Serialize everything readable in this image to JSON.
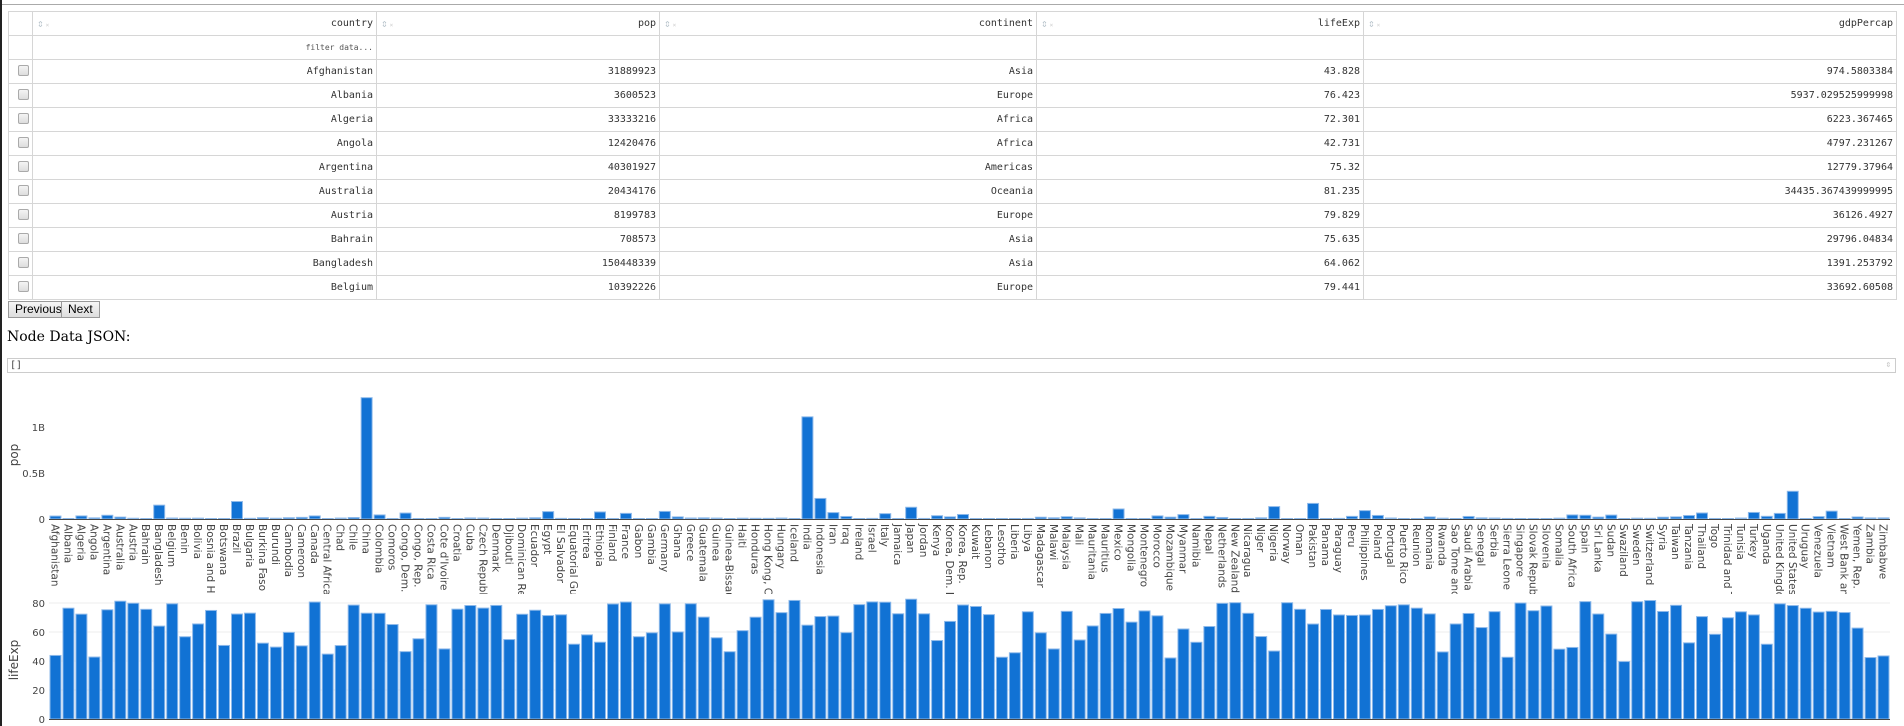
{
  "table": {
    "columns": [
      "country",
      "pop",
      "continent",
      "lifeExp",
      "gdpPercap"
    ],
    "filter_placeholder": "filter data...",
    "rows": [
      [
        "Afghanistan",
        "31889923",
        "Asia",
        "43.828",
        "974.5803384"
      ],
      [
        "Albania",
        "3600523",
        "Europe",
        "76.423",
        "5937.029525999998"
      ],
      [
        "Algeria",
        "33333216",
        "Africa",
        "72.301",
        "6223.367465"
      ],
      [
        "Angola",
        "12420476",
        "Africa",
        "42.731",
        "4797.231267"
      ],
      [
        "Argentina",
        "40301927",
        "Americas",
        "75.32",
        "12779.37964"
      ],
      [
        "Australia",
        "20434176",
        "Oceania",
        "81.235",
        "34435.367439999995"
      ],
      [
        "Austria",
        "8199783",
        "Europe",
        "79.829",
        "36126.4927"
      ],
      [
        "Bahrain",
        "708573",
        "Asia",
        "75.635",
        "29796.04834"
      ],
      [
        "Bangladesh",
        "150448339",
        "Asia",
        "64.062",
        "1391.253792"
      ],
      [
        "Belgium",
        "10392226",
        "Europe",
        "79.441",
        "33692.60508"
      ]
    ]
  },
  "pager": {
    "previous_label": "Previous",
    "next_label": "Next"
  },
  "node_data": {
    "label": "Node Data JSON:",
    "value": "[]"
  },
  "colors": {
    "bar": "#1172d4",
    "bar_outline": "#8db9ea"
  },
  "chart_data": [
    {
      "type": "bar",
      "ylabel": "pop",
      "ylim": [
        0,
        1400000000
      ],
      "yticks": [
        0,
        500000000,
        1000000000
      ],
      "ytick_labels": [
        "0",
        "0.5B",
        "1B"
      ],
      "grid": false,
      "series_key": "pop"
    },
    {
      "type": "bar",
      "ylabel": "lifeExp",
      "ylim": [
        0,
        84
      ],
      "yticks": [
        0,
        20,
        40,
        60,
        80
      ],
      "ytick_labels": [
        "0",
        "20",
        "40",
        "60",
        "80"
      ],
      "grid": true,
      "series_key": "lifeExp"
    }
  ],
  "countries": [
    [
      "Afghanistan",
      31889923,
      43.828
    ],
    [
      "Albania",
      3600523,
      76.423
    ],
    [
      "Algeria",
      33333216,
      72.301
    ],
    [
      "Angola",
      12420476,
      42.731
    ],
    [
      "Argentina",
      40301927,
      75.32
    ],
    [
      "Australia",
      20434176,
      81.235
    ],
    [
      "Austria",
      8199783,
      79.829
    ],
    [
      "Bahrain",
      708573,
      75.635
    ],
    [
      "Bangladesh",
      150448339,
      64.062
    ],
    [
      "Belgium",
      10392226,
      79.441
    ],
    [
      "Benin",
      8078314,
      56.728
    ],
    [
      "Bolivia",
      9119152,
      65.554
    ],
    [
      "Bosnia and Herzegovina",
      4552198,
      74.852
    ],
    [
      "Botswana",
      1639131,
      50.728
    ],
    [
      "Brazil",
      190010647,
      72.39
    ],
    [
      "Bulgaria",
      7322858,
      73.005
    ],
    [
      "Burkina Faso",
      14326203,
      52.295
    ],
    [
      "Burundi",
      8390505,
      49.58
    ],
    [
      "Cambodia",
      14131858,
      59.723
    ],
    [
      "Cameroon",
      17696293,
      50.43
    ],
    [
      "Canada",
      33390141,
      80.653
    ],
    [
      "Central African Republic",
      4369038,
      44.741
    ],
    [
      "Chad",
      10238807,
      50.651
    ],
    [
      "Chile",
      16284741,
      78.553
    ],
    [
      "China",
      1318683096,
      72.961
    ],
    [
      "Colombia",
      44227550,
      72.889
    ],
    [
      "Comoros",
      710960,
      65.152
    ],
    [
      "Congo, Dem. Rep.",
      64606759,
      46.462
    ],
    [
      "Congo, Rep.",
      3800610,
      55.322
    ],
    [
      "Costa Rica",
      4133884,
      78.782
    ],
    [
      "Cote d'Ivoire",
      18013409,
      48.328
    ],
    [
      "Croatia",
      4493312,
      75.748
    ],
    [
      "Cuba",
      11416987,
      78.273
    ],
    [
      "Czech Republic",
      10228744,
      76.486
    ],
    [
      "Denmark",
      5468120,
      78.332
    ],
    [
      "Djibouti",
      496374,
      54.791
    ],
    [
      "Dominican Republic",
      9319622,
      72.235
    ],
    [
      "Ecuador",
      13755680,
      74.994
    ],
    [
      "Egypt",
      80264543,
      71.338
    ],
    [
      "El Salvador",
      6939688,
      71.878
    ],
    [
      "Equatorial Guinea",
      551201,
      51.579
    ],
    [
      "Eritrea",
      4906585,
      58.04
    ],
    [
      "Ethiopia",
      76511887,
      52.947
    ],
    [
      "Finland",
      5238460,
      79.313
    ],
    [
      "France",
      61083916,
      80.657
    ],
    [
      "Gabon",
      1454867,
      56.735
    ],
    [
      "Gambia",
      1688359,
      59.448
    ],
    [
      "Germany",
      82400996,
      79.406
    ],
    [
      "Ghana",
      22873338,
      60.022
    ],
    [
      "Greece",
      10706290,
      79.483
    ],
    [
      "Guatemala",
      12572928,
      70.259
    ],
    [
      "Guinea",
      9947814,
      56.007
    ],
    [
      "Guinea-Bissau",
      1472041,
      46.388
    ],
    [
      "Haiti",
      8502814,
      60.916
    ],
    [
      "Honduras",
      7483763,
      70.198
    ],
    [
      "Hong Kong, China",
      6980412,
      82.208
    ],
    [
      "Hungary",
      9956108,
      73.338
    ],
    [
      "Iceland",
      301931,
      81.757
    ],
    [
      "India",
      1110396331,
      64.698
    ],
    [
      "Indonesia",
      223547000,
      70.65
    ],
    [
      "Iran",
      69453570,
      70.964
    ],
    [
      "Iraq",
      27499638,
      59.545
    ],
    [
      "Ireland",
      4109086,
      78.885
    ],
    [
      "Israel",
      6426679,
      80.745
    ],
    [
      "Italy",
      58147733,
      80.546
    ],
    [
      "Jamaica",
      2780132,
      72.567
    ],
    [
      "Japan",
      127467972,
      82.603
    ],
    [
      "Jordan",
      6053193,
      72.535
    ],
    [
      "Kenya",
      35610177,
      54.11
    ],
    [
      "Korea, Dem. Rep.",
      23301725,
      67.297
    ],
    [
      "Korea, Rep.",
      49044790,
      78.623
    ],
    [
      "Kuwait",
      2505559,
      77.588
    ],
    [
      "Lebanon",
      3921278,
      71.993
    ],
    [
      "Lesotho",
      2012649,
      42.592
    ],
    [
      "Liberia",
      3193942,
      45.678
    ],
    [
      "Libya",
      6036914,
      73.952
    ],
    [
      "Madagascar",
      19167654,
      59.443
    ],
    [
      "Malawi",
      13327079,
      48.303
    ],
    [
      "Malaysia",
      24821286,
      74.241
    ],
    [
      "Mali",
      12031795,
      54.467
    ],
    [
      "Mauritania",
      3270065,
      64.164
    ],
    [
      "Mauritius",
      1250882,
      72.801
    ],
    [
      "Mexico",
      108700891,
      76.195
    ],
    [
      "Mongolia",
      2874127,
      66.803
    ],
    [
      "Montenegro",
      684736,
      74.543
    ],
    [
      "Morocco",
      33757175,
      71.164
    ],
    [
      "Mozambique",
      19951656,
      42.082
    ],
    [
      "Myanmar",
      47761980,
      62.069
    ],
    [
      "Namibia",
      2055080,
      52.906
    ],
    [
      "Nepal",
      28901790,
      63.785
    ],
    [
      "Netherlands",
      16570613,
      79.762
    ],
    [
      "New Zealand",
      4115771,
      80.204
    ],
    [
      "Nicaragua",
      5675356,
      72.899
    ],
    [
      "Niger",
      12894865,
      56.867
    ],
    [
      "Nigeria",
      135031164,
      46.859
    ],
    [
      "Norway",
      4627926,
      80.196
    ],
    [
      "Oman",
      3204897,
      75.64
    ],
    [
      "Pakistan",
      169270617,
      65.483
    ],
    [
      "Panama",
      3242173,
      75.537
    ],
    [
      "Paraguay",
      6667147,
      71.752
    ],
    [
      "Peru",
      28674757,
      71.421
    ],
    [
      "Philippines",
      91077287,
      71.688
    ],
    [
      "Poland",
      38518241,
      75.563
    ],
    [
      "Portugal",
      10642836,
      78.098
    ],
    [
      "Puerto Rico",
      3942491,
      78.746
    ],
    [
      "Reunion",
      798094,
      76.442
    ],
    [
      "Romania",
      22276056,
      72.476
    ],
    [
      "Rwanda",
      8860588,
      46.242
    ],
    [
      "Sao Tome and Principe",
      199579,
      65.528
    ],
    [
      "Saudi Arabia",
      27601038,
      72.777
    ],
    [
      "Senegal",
      12267493,
      63.062
    ],
    [
      "Serbia",
      10150265,
      74.002
    ],
    [
      "Sierra Leone",
      6144562,
      42.568
    ],
    [
      "Singapore",
      4553009,
      79.972
    ],
    [
      "Slovak Republic",
      5447502,
      74.663
    ],
    [
      "Slovenia",
      2009245,
      77.926
    ],
    [
      "Somalia",
      9118773,
      48.159
    ],
    [
      "South Africa",
      43997828,
      49.339
    ],
    [
      "Spain",
      40448191,
      80.941
    ],
    [
      "Sri Lanka",
      20378239,
      72.396
    ],
    [
      "Sudan",
      42292929,
      58.556
    ],
    [
      "Swaziland",
      1133066,
      39.613
    ],
    [
      "Sweden",
      9031088,
      80.884
    ],
    [
      "Switzerland",
      7554661,
      81.701
    ],
    [
      "Syria",
      19314747,
      74.143
    ],
    [
      "Taiwan",
      23174294,
      78.4
    ],
    [
      "Tanzania",
      38139640,
      52.517
    ],
    [
      "Thailand",
      65068149,
      70.616
    ],
    [
      "Togo",
      5701579,
      58.42
    ],
    [
      "Trinidad and Tobago",
      1056608,
      69.819
    ],
    [
      "Tunisia",
      10276158,
      73.923
    ],
    [
      "Turkey",
      71158647,
      71.777
    ],
    [
      "Uganda",
      29170398,
      51.542
    ],
    [
      "United Kingdom",
      60776238,
      79.425
    ],
    [
      "United States",
      301139947,
      78.242
    ],
    [
      "Uruguay",
      3447496,
      76.384
    ],
    [
      "Venezuela",
      26084662,
      73.747
    ],
    [
      "Vietnam",
      85262356,
      74.249
    ],
    [
      "West Bank and Gaza",
      4018332,
      73.422
    ],
    [
      "Yemen, Rep.",
      22211743,
      62.698
    ],
    [
      "Zambia",
      11746035,
      42.384
    ],
    [
      "Zimbabwe",
      12311143,
      43.487
    ]
  ]
}
